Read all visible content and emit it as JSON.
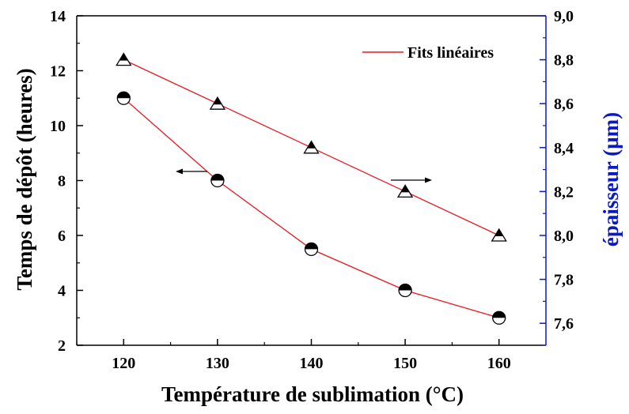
{
  "chart_data": {
    "type": "scatter",
    "title": "",
    "xlabel": "Température de sublimation (°C)",
    "ylabel_left": "Temps de dépôt  (heures)",
    "ylabel_right": "épaisseur (µm)",
    "xlim": [
      115,
      165
    ],
    "ylim_left": [
      2,
      14
    ],
    "ylim_right": [
      7.5,
      9.0
    ],
    "x_ticks": [
      "120",
      "130",
      "140",
      "150",
      "160"
    ],
    "y_left_ticks": [
      "2",
      "4",
      "6",
      "8",
      "10",
      "12",
      "14"
    ],
    "y_right_ticks": [
      "7,6",
      "7,8",
      "8,0",
      "8,2",
      "8,4",
      "8,6",
      "8,8",
      "9,0"
    ],
    "grid": false,
    "legend": {
      "position": "top-right",
      "label": "Fits linéaires"
    },
    "series": [
      {
        "axis": "left",
        "marker": "half-filled-circle",
        "x": [
          120,
          130,
          140,
          150,
          160
        ],
        "y": [
          11.0,
          8.0,
          5.5,
          4.0,
          3.0
        ]
      },
      {
        "axis": "right",
        "marker": "half-filled-triangle",
        "x": [
          120,
          130,
          140,
          150,
          160
        ],
        "y": [
          8.8,
          8.6,
          8.4,
          8.2,
          8.0
        ]
      }
    ],
    "colors": {
      "fit_line": "#e8191f",
      "right_axis": "#0b18c6",
      "left_axis": "#000000"
    }
  }
}
